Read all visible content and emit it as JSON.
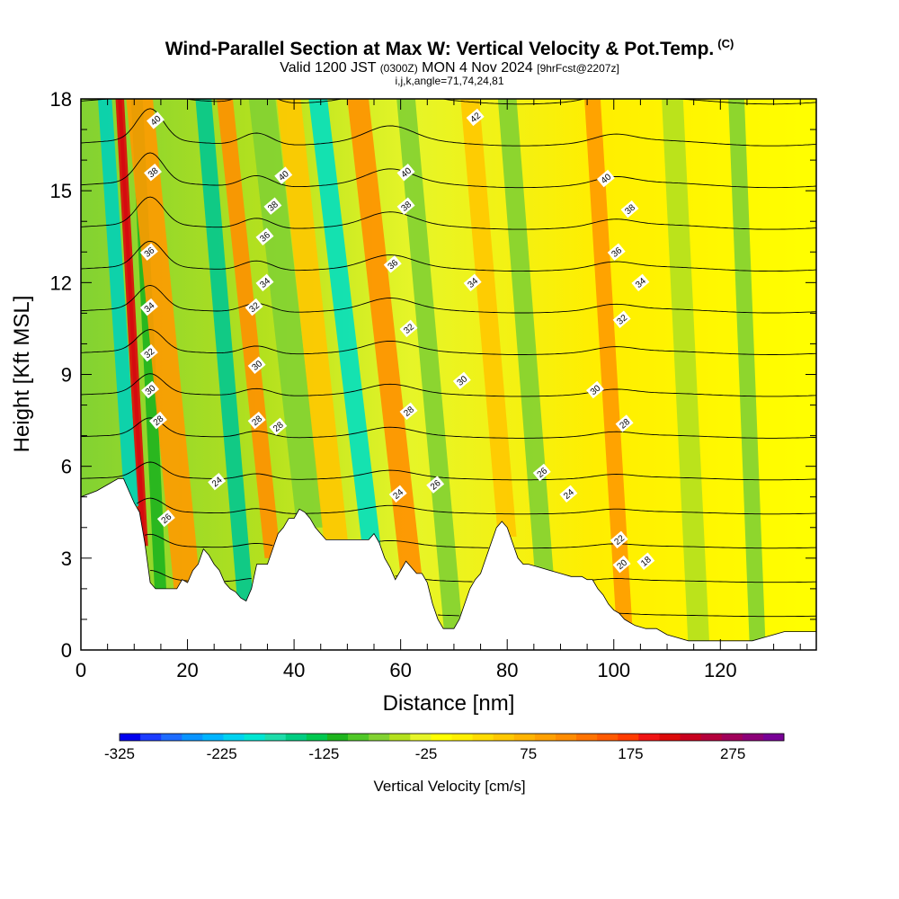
{
  "chart_data": {
    "type": "contour-section",
    "title": "Wind-Parallel Section at Max W: Vertical Velocity & Pot.Temp.",
    "copyright": "(C)",
    "subtitle": {
      "valid_prefix": "Valid 1200 JST",
      "utc": "(0300Z)",
      "date": "MON 4 Nov 2024",
      "forecast": "[9hrFcst@2207z]"
    },
    "indices": "i,j,k,angle=71,74,24,81",
    "xlabel": "Distance [nm]",
    "ylabel": "Height [Kft MSL]",
    "xlim": [
      0,
      138
    ],
    "ylim": [
      0,
      18
    ],
    "x_ticks": [
      "0",
      "20",
      "40",
      "60",
      "80",
      "100",
      "120"
    ],
    "y_ticks": [
      "0",
      "3",
      "6",
      "9",
      "12",
      "15",
      "18"
    ],
    "colorbar": {
      "label": "Vertical Velocity [cm/s]",
      "range": [
        -325,
        325
      ],
      "tick_labels": [
        "-325",
        "-225",
        "-125",
        "-25",
        "75",
        "175",
        "275"
      ],
      "colors": [
        "#0000ee",
        "#1c3cff",
        "#1e6cff",
        "#0a94ff",
        "#00b4ff",
        "#00d2f0",
        "#00e6d2",
        "#1edcaa",
        "#00cd82",
        "#00c850",
        "#1eb41e",
        "#50c828",
        "#82d232",
        "#b4e11e",
        "#e6f528",
        "#ffff00",
        "#fff000",
        "#ffdc00",
        "#ffc800",
        "#ffb400",
        "#ffa000",
        "#ff8c00",
        "#ff7300",
        "#ff5a00",
        "#ff3c00",
        "#f01414",
        "#dc0a0a",
        "#c8001e",
        "#b4003c",
        "#a0005a",
        "#8c0078",
        "#780096"
      ]
    },
    "vertical_velocity_bands": [
      {
        "x": 11.8,
        "w": 0.7,
        "top_shift": -4.5,
        "color": "#9e0046"
      },
      {
        "x": 11.8,
        "w": 1.6,
        "top_shift": -4.5,
        "color": "#dc0a0a"
      },
      {
        "x": 9.5,
        "w": 2.6,
        "top_shift": -5.0,
        "color": "#00d2b8"
      },
      {
        "x": 15.0,
        "w": 2.2,
        "top_shift": -4.5,
        "color": "#1eb41e"
      },
      {
        "x": 20.0,
        "w": 5.0,
        "top_shift": -9.0,
        "color": "#ff9a00"
      },
      {
        "x": 31.0,
        "w": 3.0,
        "top_shift": -8.0,
        "color": "#00c890"
      },
      {
        "x": 36.0,
        "w": 3.0,
        "top_shift": -9.0,
        "color": "#ff9000"
      },
      {
        "x": 43.0,
        "w": 5.0,
        "top_shift": -9.0,
        "color": "#82d232"
      },
      {
        "x": 48.0,
        "w": 4.5,
        "top_shift": -9.0,
        "color": "#ffc800"
      },
      {
        "x": 54.5,
        "w": 3.5,
        "top_shift": -10.0,
        "color": "#00e0c0"
      },
      {
        "x": 62.0,
        "w": 4.0,
        "top_shift": -10.0,
        "color": "#ff9000"
      },
      {
        "x": 70.0,
        "w": 3.5,
        "top_shift": -9.0,
        "color": "#82d232"
      },
      {
        "x": 80.0,
        "w": 3.5,
        "top_shift": -7.0,
        "color": "#ffc800"
      },
      {
        "x": 87.0,
        "w": 3.5,
        "top_shift": -7.0,
        "color": "#82d232"
      },
      {
        "x": 102.0,
        "w": 3.0,
        "top_shift": -6.0,
        "color": "#ff9a00"
      },
      {
        "x": 116.0,
        "w": 4.0,
        "top_shift": -5.0,
        "color": "#b4e11e"
      },
      {
        "x": 127.0,
        "w": 3.0,
        "top_shift": -4.0,
        "color": "#82d232"
      }
    ],
    "theta_contours": [
      16,
      18,
      20,
      22,
      24,
      26,
      28,
      30,
      32,
      34,
      36,
      38,
      40,
      42
    ],
    "contour_labels": [
      {
        "text": "40",
        "x": 14.0,
        "y": 17.3
      },
      {
        "text": "38",
        "x": 13.5,
        "y": 15.6
      },
      {
        "text": "36",
        "x": 12.8,
        "y": 13.0
      },
      {
        "text": "34",
        "x": 12.8,
        "y": 11.2
      },
      {
        "text": "32",
        "x": 12.8,
        "y": 9.7
      },
      {
        "text": "30",
        "x": 13.0,
        "y": 8.5
      },
      {
        "text": "28",
        "x": 14.5,
        "y": 7.5
      },
      {
        "text": "26",
        "x": 16.0,
        "y": 4.3
      },
      {
        "text": "24",
        "x": 25.5,
        "y": 5.5
      },
      {
        "text": "40",
        "x": 38.0,
        "y": 15.5
      },
      {
        "text": "38",
        "x": 36.0,
        "y": 14.5
      },
      {
        "text": "36",
        "x": 34.5,
        "y": 13.5
      },
      {
        "text": "34",
        "x": 34.5,
        "y": 12.0
      },
      {
        "text": "32",
        "x": 32.5,
        "y": 11.2
      },
      {
        "text": "30",
        "x": 33.0,
        "y": 9.3
      },
      {
        "text": "28",
        "x": 33.0,
        "y": 7.5
      },
      {
        "text": "28",
        "x": 37.0,
        "y": 7.3
      },
      {
        "text": "40",
        "x": 61.0,
        "y": 15.6
      },
      {
        "text": "38",
        "x": 61.0,
        "y": 14.5
      },
      {
        "text": "36",
        "x": 58.5,
        "y": 12.6
      },
      {
        "text": "34",
        "x": 73.5,
        "y": 12.0
      },
      {
        "text": "32",
        "x": 61.5,
        "y": 10.5
      },
      {
        "text": "30",
        "x": 71.5,
        "y": 8.8
      },
      {
        "text": "28",
        "x": 61.5,
        "y": 7.8
      },
      {
        "text": "26",
        "x": 66.5,
        "y": 5.4
      },
      {
        "text": "24",
        "x": 59.5,
        "y": 5.1
      },
      {
        "text": "42",
        "x": 74.0,
        "y": 17.4
      },
      {
        "text": "40",
        "x": 98.5,
        "y": 15.4
      },
      {
        "text": "38",
        "x": 103.0,
        "y": 14.4
      },
      {
        "text": "36",
        "x": 100.5,
        "y": 13.0
      },
      {
        "text": "34",
        "x": 105.0,
        "y": 12.0
      },
      {
        "text": "32",
        "x": 101.5,
        "y": 10.8
      },
      {
        "text": "30",
        "x": 96.5,
        "y": 8.5
      },
      {
        "text": "28",
        "x": 102.0,
        "y": 7.4
      },
      {
        "text": "26",
        "x": 86.5,
        "y": 5.8
      },
      {
        "text": "24",
        "x": 91.5,
        "y": 5.1
      },
      {
        "text": "22",
        "x": 101.0,
        "y": 3.6
      },
      {
        "text": "20",
        "x": 101.5,
        "y": 2.8
      },
      {
        "text": "18",
        "x": 106.0,
        "y": 2.9
      }
    ],
    "terrain": [
      [
        0,
        5.0
      ],
      [
        3,
        5.2
      ],
      [
        5,
        5.4
      ],
      [
        7,
        5.6
      ],
      [
        8,
        5.6
      ],
      [
        9,
        5.2
      ],
      [
        10,
        4.8
      ],
      [
        11,
        4.5
      ],
      [
        12,
        3.5
      ],
      [
        13,
        2.2
      ],
      [
        14,
        2.0
      ],
      [
        16,
        2.0
      ],
      [
        18,
        2.0
      ],
      [
        19,
        2.3
      ],
      [
        20,
        2.2
      ],
      [
        21,
        2.6
      ],
      [
        22,
        2.8
      ],
      [
        23,
        3.3
      ],
      [
        24,
        3.1
      ],
      [
        25,
        2.8
      ],
      [
        26,
        2.6
      ],
      [
        27,
        2.2
      ],
      [
        28,
        2.0
      ],
      [
        29,
        1.9
      ],
      [
        30,
        1.7
      ],
      [
        31,
        1.6
      ],
      [
        32,
        2.0
      ],
      [
        33,
        2.8
      ],
      [
        34,
        2.8
      ],
      [
        35,
        2.8
      ],
      [
        36,
        3.3
      ],
      [
        37,
        3.8
      ],
      [
        38,
        4.0
      ],
      [
        39,
        4.3
      ],
      [
        40,
        4.3
      ],
      [
        41,
        4.6
      ],
      [
        42,
        4.5
      ],
      [
        43,
        4.3
      ],
      [
        44,
        4.0
      ],
      [
        45,
        3.8
      ],
      [
        46,
        3.6
      ],
      [
        47,
        3.6
      ],
      [
        48,
        3.6
      ],
      [
        50,
        3.6
      ],
      [
        52,
        3.6
      ],
      [
        54,
        3.6
      ],
      [
        55,
        3.8
      ],
      [
        56,
        3.5
      ],
      [
        57,
        3.0
      ],
      [
        58,
        2.7
      ],
      [
        59,
        2.3
      ],
      [
        60,
        2.6
      ],
      [
        61,
        2.9
      ],
      [
        62,
        2.7
      ],
      [
        63,
        2.5
      ],
      [
        64,
        2.5
      ],
      [
        65,
        2.2
      ],
      [
        66,
        1.5
      ],
      [
        67,
        1.0
      ],
      [
        68,
        0.7
      ],
      [
        70,
        0.7
      ],
      [
        71,
        1.0
      ],
      [
        72,
        1.5
      ],
      [
        73,
        2.0
      ],
      [
        74,
        2.3
      ],
      [
        75,
        2.5
      ],
      [
        76,
        3.0
      ],
      [
        77,
        3.5
      ],
      [
        78,
        4.0
      ],
      [
        79,
        4.2
      ],
      [
        80,
        4.0
      ],
      [
        81,
        3.5
      ],
      [
        82,
        3.0
      ],
      [
        83,
        2.8
      ],
      [
        84,
        2.8
      ],
      [
        86,
        2.7
      ],
      [
        88,
        2.6
      ],
      [
        90,
        2.5
      ],
      [
        92,
        2.4
      ],
      [
        94,
        2.4
      ],
      [
        95,
        2.3
      ],
      [
        96,
        2.3
      ],
      [
        97,
        2.0
      ],
      [
        98,
        1.8
      ],
      [
        99,
        1.5
      ],
      [
        100,
        1.3
      ],
      [
        101,
        1.2
      ],
      [
        102,
        1.0
      ],
      [
        103,
        0.9
      ],
      [
        104,
        0.8
      ],
      [
        106,
        0.7
      ],
      [
        108,
        0.7
      ],
      [
        110,
        0.5
      ],
      [
        112,
        0.4
      ],
      [
        114,
        0.3
      ],
      [
        118,
        0.3
      ],
      [
        122,
        0.3
      ],
      [
        126,
        0.3
      ],
      [
        128,
        0.4
      ],
      [
        130,
        0.5
      ],
      [
        132,
        0.6
      ],
      [
        134,
        0.6
      ],
      [
        136,
        0.6
      ],
      [
        138,
        0.6
      ]
    ]
  }
}
